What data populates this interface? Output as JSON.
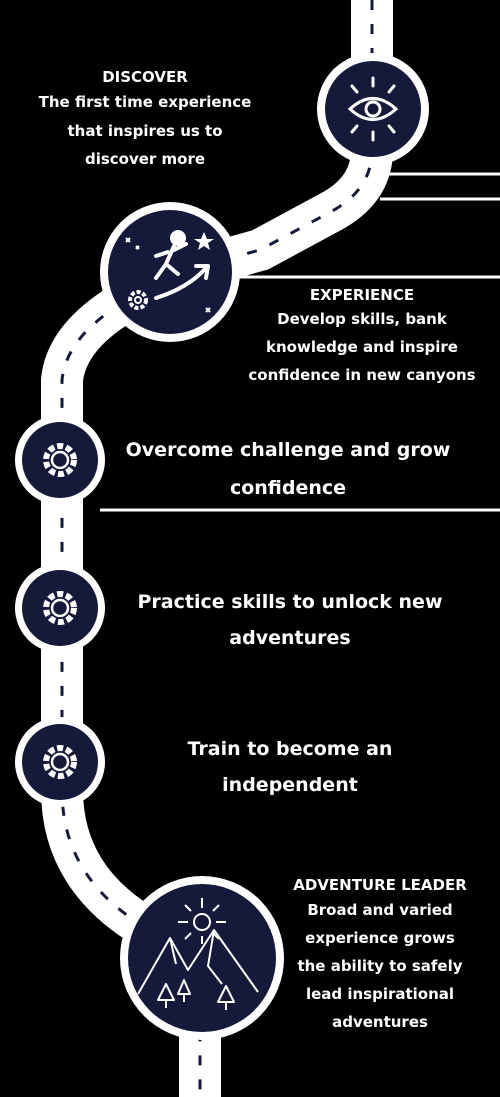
{
  "colors": {
    "navy": "#151a3b",
    "road": "#ffffff",
    "background": "#000000"
  },
  "stages": [
    {
      "title": "DISCOVER",
      "lines": [
        "The first time experience",
        "that inspires us to",
        "discover more"
      ],
      "icon": "eye-icon"
    },
    {
      "title": "EXPERIENCE",
      "lines": [
        "Develop skills, bank",
        "knowledge and inspire",
        "confidence in new canyons"
      ],
      "icon": "climber-arrow-icon"
    },
    {
      "lines": [
        "Overcome challenge and grow",
        "confidence"
      ],
      "icon": "gear-icon"
    },
    {
      "lines": [
        "Practice skills to unlock new",
        "adventures"
      ],
      "icon": "gear-icon"
    },
    {
      "lines": [
        "Train to become an",
        "independent"
      ],
      "icon": "gear-icon"
    },
    {
      "title": "ADVENTURE LEADER",
      "lines": [
        "Broad and varied",
        "experience grows",
        "the ability to safely",
        "lead inspirational",
        "adventures"
      ],
      "icon": "mountain-sun-icon"
    }
  ]
}
